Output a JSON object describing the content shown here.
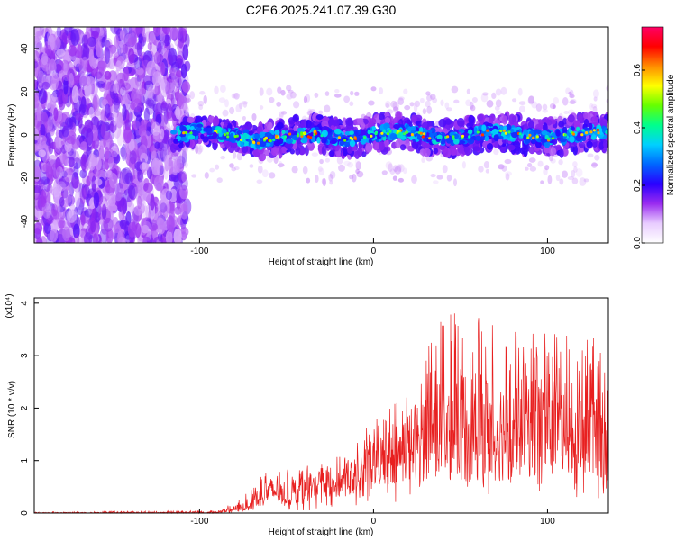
{
  "title": "C2E6.2025.241.07.39.G30",
  "chart_data": [
    {
      "type": "heatmap",
      "xlabel": "Height of straight line (km)",
      "ylabel": "Frequency (Hz)",
      "xlim": [
        -195,
        135
      ],
      "ylim": [
        -50,
        50
      ],
      "x_ticks": [
        -100,
        0,
        100
      ],
      "y_ticks": [
        40,
        20,
        0,
        -20,
        -40
      ],
      "colorbar": {
        "label": "Normalized spectral amplitude",
        "range": [
          0.0,
          0.75
        ],
        "ticks": [
          0.0,
          0.2,
          0.4,
          0.6
        ],
        "colors": [
          "#ffffff",
          "#e8ccff",
          "#9a2cf0",
          "#2a00ff",
          "#0066ff",
          "#00d0ff",
          "#00ff8c",
          "#66ff00",
          "#ffff00",
          "#ff8c00",
          "#ff0000",
          "#ff0066"
        ]
      },
      "noise_region_x": [
        -195,
        -115
      ],
      "signal_band": {
        "x": [
          -115,
          135
        ],
        "center_freq_hz": 0,
        "half_width_hz": 6,
        "extended_region": {
          "x": [
            -65,
            135
          ],
          "freq_range_hz": [
            -10,
            8
          ]
        }
      }
    },
    {
      "type": "line",
      "xlabel": "Height of straight line (km)",
      "ylabel": "SNR (10 * v/v)",
      "y_multiplier": "(x10⁴)",
      "xlim": [
        -195,
        135
      ],
      "ylim": [
        0,
        4.1
      ],
      "x_ticks": [
        -100,
        0,
        100
      ],
      "y_ticks": [
        0,
        1,
        2,
        3,
        4
      ],
      "series": [
        {
          "name": "SNR",
          "color": "#e82020",
          "envelope": {
            "x": [
              -195,
              -90,
              -75,
              -60,
              -45,
              -35,
              -25,
              -15,
              0,
              15,
              30,
              45,
              60,
              80,
              100,
              120,
              135
            ],
            "max": [
              0.02,
              0.05,
              0.3,
              0.9,
              0.8,
              0.95,
              1.0,
              1.2,
              1.8,
              2.2,
              3.2,
              4.0,
              3.8,
              3.5,
              3.6,
              3.3,
              3.4
            ],
            "min": [
              0.0,
              0.0,
              0.0,
              0.05,
              0.05,
              0.05,
              0.1,
              0.1,
              0.2,
              0.2,
              0.2,
              0.3,
              0.3,
              0.2,
              0.3,
              0.2,
              0.3
            ],
            "mean": [
              0.005,
              0.01,
              0.1,
              0.4,
              0.35,
              0.45,
              0.5,
              0.6,
              0.9,
              1.1,
              1.4,
              1.6,
              1.5,
              1.5,
              1.6,
              1.4,
              1.5
            ]
          }
        }
      ]
    }
  ]
}
